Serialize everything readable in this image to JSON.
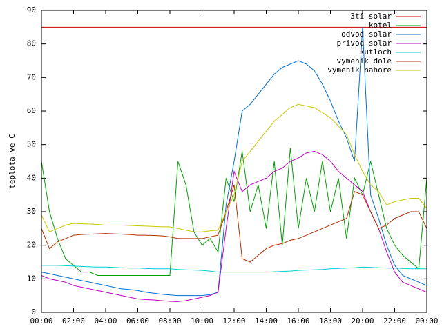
{
  "chart_data": {
    "type": "line",
    "ylabel": "teplota ve C",
    "x": [
      0,
      0.5,
      1,
      1.5,
      2,
      2.5,
      3,
      3.5,
      4,
      4.5,
      5,
      5.5,
      6,
      6.5,
      7,
      7.5,
      8,
      8.5,
      9,
      9.5,
      10,
      10.5,
      11,
      11.5,
      12,
      12.5,
      13,
      13.5,
      14,
      14.5,
      15,
      15.5,
      16,
      16.5,
      17,
      17.5,
      18,
      18.5,
      19,
      19.5,
      20,
      20.5,
      21,
      21.5,
      22,
      22.5,
      23,
      23.5,
      24
    ],
    "xlim": [
      0,
      24
    ],
    "xticks": [
      {
        "value": 0,
        "label": "00:00"
      },
      {
        "value": 2,
        "label": "02:00"
      },
      {
        "value": 4,
        "label": "04:00"
      },
      {
        "value": 6,
        "label": "06:00"
      },
      {
        "value": 8,
        "label": "08:00"
      },
      {
        "value": 10,
        "label": "10:00"
      },
      {
        "value": 12,
        "label": "12:00"
      },
      {
        "value": 14,
        "label": "14:00"
      },
      {
        "value": 16,
        "label": "16:00"
      },
      {
        "value": 18,
        "label": "18:00"
      },
      {
        "value": 20,
        "label": "20:00"
      },
      {
        "value": 22,
        "label": "22:00"
      },
      {
        "value": 24,
        "label": "00:00"
      }
    ],
    "ylim": [
      0,
      90
    ],
    "yticks": [
      0,
      10,
      20,
      30,
      40,
      50,
      60,
      70,
      80,
      90
    ],
    "legend": "top-right",
    "series": [
      {
        "name": "3ti solar",
        "color": "#cc0000",
        "values": [
          85,
          85,
          85,
          85,
          85,
          85,
          85,
          85,
          85,
          85,
          85,
          85,
          85,
          85,
          85,
          85,
          85,
          85,
          85,
          85,
          85,
          85,
          85,
          85,
          85,
          85,
          85,
          85,
          85,
          85,
          85,
          85,
          85,
          85,
          85,
          85,
          85,
          85,
          85,
          85,
          85,
          85,
          85,
          85,
          85,
          85,
          85,
          85,
          85
        ]
      },
      {
        "name": "kotel",
        "color": "#00a000",
        "values": [
          45,
          30,
          22,
          16,
          14,
          12,
          12,
          11,
          11,
          11,
          11,
          11,
          11,
          11,
          11,
          11,
          11,
          45,
          38,
          24,
          20,
          22,
          18,
          40,
          33,
          48,
          30,
          38,
          25,
          45,
          20,
          49,
          25,
          40,
          30,
          45,
          30,
          40,
          22,
          40,
          35,
          45,
          35,
          25,
          20,
          17,
          15,
          13,
          40
        ]
      },
      {
        "name": "odvod solar",
        "color": "#0070d0",
        "values": [
          12,
          11.5,
          11,
          10.5,
          10,
          9.5,
          9,
          8.5,
          8,
          7.5,
          7,
          6.8,
          6.5,
          6,
          5.7,
          5.4,
          5.2,
          5,
          5,
          5,
          5,
          5.3,
          6,
          32,
          45,
          60,
          62,
          65,
          68,
          71,
          73,
          74,
          75,
          74,
          72,
          68,
          63,
          57,
          52,
          45,
          85,
          35,
          28,
          20,
          14,
          11,
          10,
          9,
          8
        ]
      },
      {
        "name": "privod solar",
        "color": "#c000c0",
        "values": [
          11,
          10,
          9.5,
          9,
          8,
          7.5,
          7,
          6.5,
          6,
          5.5,
          5,
          4.5,
          4,
          3.8,
          3.7,
          3.5,
          3.3,
          3.2,
          3.5,
          4,
          4.5,
          5,
          6,
          25,
          42,
          36,
          38,
          39,
          40,
          42,
          43,
          45,
          46,
          47.5,
          48,
          47,
          45,
          42,
          40,
          38,
          36,
          30,
          25,
          18,
          12,
          9,
          8,
          7,
          6
        ]
      },
      {
        "name": "kutloch",
        "color": "#00d0d0",
        "values": [
          14,
          14,
          14,
          13.9,
          13.8,
          13.7,
          13.6,
          13.5,
          13.5,
          13.4,
          13.3,
          13.2,
          13.2,
          13.1,
          13,
          13,
          13,
          12.8,
          12.7,
          12.6,
          12.5,
          12.3,
          12,
          12,
          12,
          12,
          12,
          12,
          12,
          12.1,
          12.2,
          12.3,
          12.5,
          12.6,
          12.7,
          12.8,
          13,
          13.1,
          13.2,
          13.3,
          13.5,
          13.4,
          13.3,
          13.2,
          13.2,
          13.1,
          13,
          13,
          13
        ]
      },
      {
        "name": "vymenik dole",
        "color": "#b03000",
        "values": [
          25,
          19,
          21,
          22,
          23,
          23.2,
          23.3,
          23.4,
          23.5,
          23.4,
          23.3,
          23.2,
          23,
          23,
          22.9,
          22.8,
          22.5,
          22,
          22,
          22,
          22,
          22.5,
          23,
          30,
          38,
          16,
          15,
          17,
          19,
          20,
          20.5,
          21.5,
          22,
          23,
          24,
          25,
          26,
          27,
          28,
          36,
          35,
          30,
          25,
          26,
          28,
          29,
          30,
          30,
          25
        ]
      },
      {
        "name": "vymenik nahore",
        "color": "#c8c800",
        "values": [
          29,
          24,
          25,
          26,
          26.5,
          26.4,
          26.3,
          26.2,
          26,
          26,
          26,
          25.9,
          25.8,
          25.7,
          25.6,
          25.5,
          25.5,
          25,
          24.5,
          24,
          24,
          24.3,
          24.5,
          30,
          35,
          45,
          48,
          51,
          54,
          57,
          59,
          61,
          62,
          61.5,
          61,
          59.5,
          58,
          55.5,
          53,
          47,
          42,
          38,
          36,
          32,
          33,
          33.5,
          34,
          34,
          31
        ]
      }
    ]
  }
}
